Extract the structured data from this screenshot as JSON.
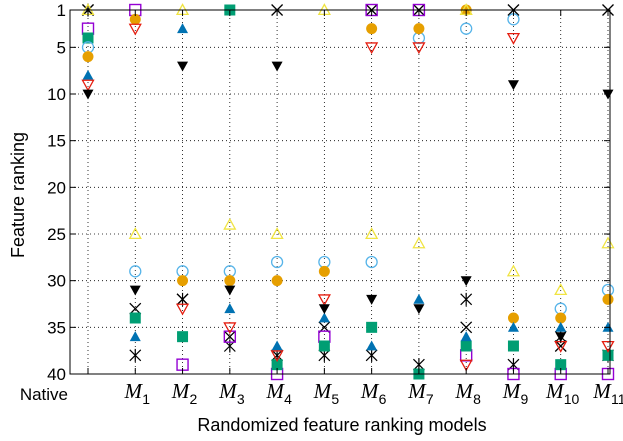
{
  "chart_data": {
    "type": "scatter",
    "title": "",
    "xlabel": "Randomized feature ranking models",
    "ylabel": "Feature ranking",
    "ylim": [
      1,
      40
    ],
    "y_reversed": true,
    "y_ticks": [
      1,
      5,
      10,
      15,
      20,
      25,
      30,
      35,
      40
    ],
    "grid": "dotted vertical lines at each model, dotted horizontal lines at y ticks",
    "categories": [
      {
        "letter": "Native",
        "sub": ""
      },
      {
        "letter": "M",
        "sub": "1"
      },
      {
        "letter": "M",
        "sub": "2"
      },
      {
        "letter": "M",
        "sub": "3"
      },
      {
        "letter": "M",
        "sub": "4"
      },
      {
        "letter": "M",
        "sub": "5"
      },
      {
        "letter": "M",
        "sub": "6"
      },
      {
        "letter": "M",
        "sub": "7"
      },
      {
        "letter": "M",
        "sub": "8"
      },
      {
        "letter": "M",
        "sub": "9"
      },
      {
        "letter": "M",
        "sub": "10"
      },
      {
        "letter": "M",
        "sub": "11"
      }
    ],
    "series": [
      {
        "marker": "x",
        "color": "#000000",
        "values": [
          1,
          33,
          32,
          36,
          1,
          35,
          1,
          1,
          35,
          1,
          37,
          1
        ]
      },
      {
        "marker": "star",
        "color": "#000000",
        "values": [
          1,
          38,
          32,
          37,
          38,
          38,
          38,
          39,
          32,
          39,
          36,
          38
        ]
      },
      {
        "marker": "square-open",
        "color": "#9400d3",
        "values": [
          3,
          1,
          39,
          36,
          40,
          36,
          1,
          1,
          38,
          40,
          40,
          40
        ]
      },
      {
        "marker": "square-filled",
        "color": "#009e73",
        "values": [
          4,
          34,
          36,
          1,
          39,
          37,
          35,
          40,
          37,
          37,
          39,
          38
        ]
      },
      {
        "marker": "circle-open",
        "color": "#56b4e9",
        "values": [
          5,
          29,
          29,
          29,
          28,
          28,
          28,
          4,
          3,
          2,
          33,
          31
        ]
      },
      {
        "marker": "circle-filled",
        "color": "#e69f00",
        "values": [
          6,
          2,
          30,
          30,
          30,
          29,
          3,
          3,
          1,
          34,
          34,
          32
        ]
      },
      {
        "marker": "triangle-up-filled",
        "color": "#0072b2",
        "values": [
          8,
          36,
          3,
          33,
          37,
          34,
          37,
          32,
          36,
          35,
          35,
          35
        ]
      },
      {
        "marker": "triangle-down-open",
        "color": "#e51e10",
        "values": [
          9,
          3,
          33,
          35,
          38,
          32,
          5,
          5,
          39,
          4,
          37,
          37
        ]
      },
      {
        "marker": "triangle-down-filled",
        "color": "#000000",
        "values": [
          10,
          31,
          7,
          31,
          7,
          33,
          32,
          33,
          30,
          9,
          36,
          10
        ]
      },
      {
        "marker": "triangle-up-open",
        "color": "#f0e442",
        "values": [
          1,
          25,
          1,
          24,
          25,
          1,
          25,
          26,
          1,
          29,
          31,
          26
        ]
      }
    ]
  }
}
